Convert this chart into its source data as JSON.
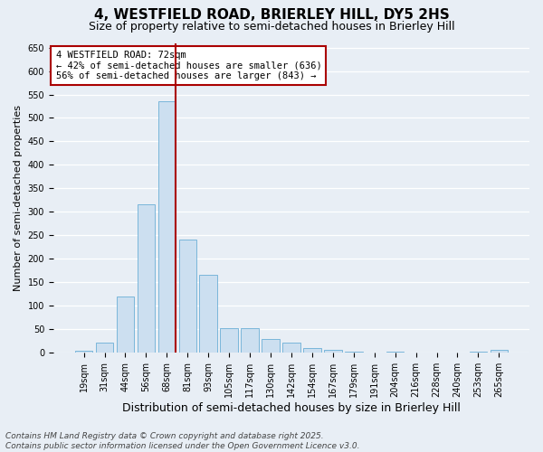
{
  "title": "4, WESTFIELD ROAD, BRIERLEY HILL, DY5 2HS",
  "subtitle": "Size of property relative to semi-detached houses in Brierley Hill",
  "xlabel": "Distribution of semi-detached houses by size in Brierley Hill",
  "ylabel": "Number of semi-detached properties",
  "categories": [
    "19sqm",
    "31sqm",
    "44sqm",
    "56sqm",
    "68sqm",
    "81sqm",
    "93sqm",
    "105sqm",
    "117sqm",
    "130sqm",
    "142sqm",
    "154sqm",
    "167sqm",
    "179sqm",
    "191sqm",
    "204sqm",
    "216sqm",
    "228sqm",
    "240sqm",
    "253sqm",
    "265sqm"
  ],
  "values": [
    3,
    20,
    120,
    315,
    535,
    240,
    165,
    52,
    52,
    28,
    20,
    10,
    5,
    2,
    0,
    2,
    0,
    0,
    0,
    2,
    5
  ],
  "bar_color": "#ccdff0",
  "bar_edge_color": "#6baed6",
  "vline_color": "#aa0000",
  "vline_pos": 4.425,
  "annotation_text": "4 WESTFIELD ROAD: 72sqm\n← 42% of semi-detached houses are smaller (636)\n56% of semi-detached houses are larger (843) →",
  "annotation_box_edgecolor": "#aa0000",
  "annotation_bg": "#ffffff",
  "ylim": [
    0,
    660
  ],
  "yticks": [
    0,
    50,
    100,
    150,
    200,
    250,
    300,
    350,
    400,
    450,
    500,
    550,
    600,
    650
  ],
  "footnote": "Contains HM Land Registry data © Crown copyright and database right 2025.\nContains public sector information licensed under the Open Government Licence v3.0.",
  "title_fontsize": 11,
  "subtitle_fontsize": 9,
  "xlabel_fontsize": 9,
  "ylabel_fontsize": 8,
  "tick_fontsize": 7,
  "annotation_fontsize": 7.5,
  "footnote_fontsize": 6.5,
  "bg_color": "#e8eef5",
  "grid_color": "#ffffff"
}
